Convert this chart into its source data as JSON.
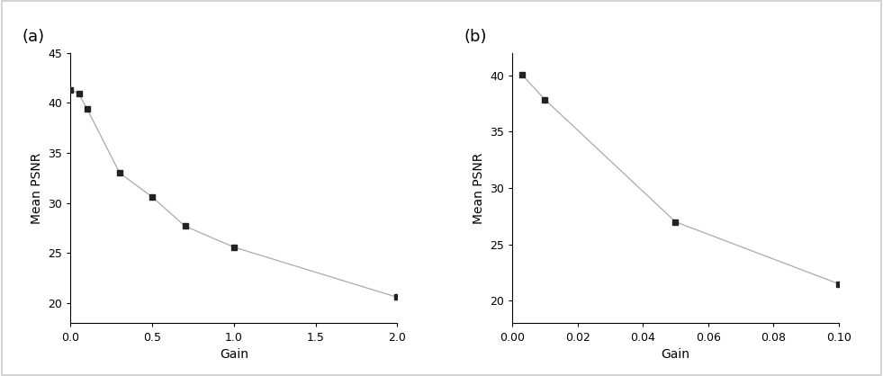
{
  "panel_a": {
    "x": [
      0.0,
      0.05,
      0.1,
      0.3,
      0.5,
      0.7,
      1.0,
      2.0
    ],
    "y": [
      41.3,
      40.9,
      39.4,
      33.0,
      30.6,
      27.7,
      25.6,
      20.6
    ],
    "xlabel": "Gain",
    "ylabel": "Mean PSNR",
    "label": "(a)",
    "xlim": [
      0.0,
      2.0
    ],
    "ylim": [
      18,
      45
    ],
    "xticks": [
      0.0,
      0.5,
      1.0,
      1.5,
      2.0
    ],
    "yticks": [
      20,
      25,
      30,
      35,
      40,
      45
    ]
  },
  "panel_b": {
    "x": [
      0.003,
      0.01,
      0.05,
      0.1
    ],
    "y": [
      40.05,
      37.85,
      27.0,
      21.5
    ],
    "xlabel": "Gain",
    "ylabel": "Mean PSNR",
    "label": "(b)",
    "xlim": [
      0.0,
      0.1
    ],
    "ylim": [
      18,
      42
    ],
    "xticks": [
      0.0,
      0.02,
      0.04,
      0.06,
      0.08,
      0.1
    ],
    "yticks": [
      20,
      25,
      30,
      35,
      40
    ]
  },
  "line_color": "#aaaaaa",
  "marker_color": "#222222",
  "marker": "s",
  "marker_size": 5,
  "line_width": 0.9,
  "background_color": "#ffffff",
  "border_color": "#cccccc",
  "label_fontsize": 13,
  "tick_fontsize": 9,
  "axis_label_fontsize": 10
}
